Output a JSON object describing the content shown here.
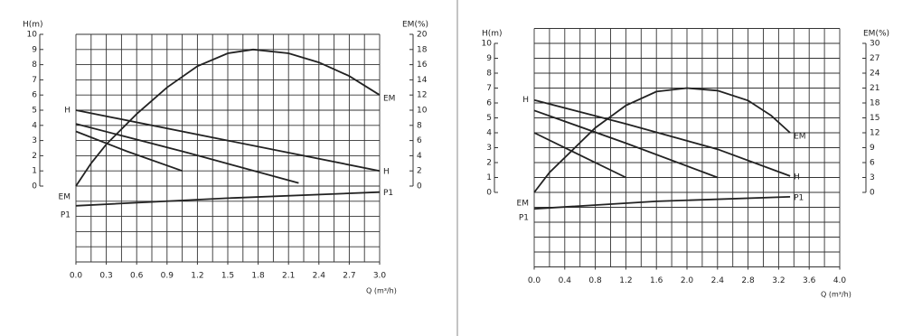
{
  "chart_data": [
    {
      "type": "line",
      "y_label": "H(m)",
      "y2_label": "EM(%)",
      "x_label": "Q (m³/h)",
      "xlim": [
        0,
        3
      ],
      "ylim": [
        -5,
        10
      ],
      "y2lim": [
        -10,
        20
      ],
      "grid": true,
      "xticks": [
        {
          "value": 0,
          "label": "0.0"
        },
        0.3,
        0.6,
        0.9,
        1.2,
        1.5,
        1.8,
        2.1,
        2.4,
        2.7,
        {
          "value": 3,
          "label": "3.0"
        }
      ],
      "yticks": [
        0,
        1,
        2,
        3,
        4,
        5,
        6,
        7,
        8,
        9,
        10
      ],
      "y2ticks": [
        0,
        2,
        4,
        6,
        8,
        10,
        12,
        14,
        16,
        18,
        20
      ],
      "series": [
        {
          "name": "EM",
          "axis": "y2",
          "color": "#222222",
          "x": [
            0,
            0.15,
            0.3,
            0.6,
            0.9,
            1.2,
            1.5,
            1.75,
            2.1,
            2.4,
            2.7,
            3.0
          ],
          "values": [
            0,
            3,
            5.5,
            9.5,
            13,
            15.8,
            17.5,
            18,
            17.5,
            16.3,
            14.5,
            12
          ]
        },
        {
          "name": "H",
          "color": "#222222",
          "x": [
            0,
            1.5,
            3.0
          ],
          "values": [
            5,
            3,
            1
          ]
        },
        {
          "color": "#222222",
          "x": [
            0,
            1.1,
            2.2
          ],
          "values": [
            4.1,
            2.2,
            0.2
          ]
        },
        {
          "color": "#222222",
          "x": [
            0,
            0.5,
            1.05
          ],
          "values": [
            3.6,
            2.3,
            1.0
          ]
        },
        {
          "name": "P1",
          "color": "#222222",
          "x": [
            0,
            1.5,
            3.0
          ],
          "values": [
            -1.3,
            -0.8,
            -0.4
          ]
        }
      ]
    },
    {
      "type": "line",
      "y_label": "H(m)",
      "y2_label": "EM(%)",
      "x_label": "Q (m³/h)",
      "xlim": [
        0,
        4
      ],
      "ylim": [
        -5,
        11
      ],
      "y2lim": [
        -15,
        33
      ],
      "grid": true,
      "xticks": [
        {
          "value": 0,
          "label": "0.0"
        },
        0.4,
        0.8,
        1.2,
        1.6,
        {
          "value": 2,
          "label": "2.0"
        },
        2.4,
        2.8,
        3.2,
        3.6,
        {
          "value": 4,
          "label": "4.0"
        }
      ],
      "yticks": [
        0,
        1,
        2,
        3,
        4,
        5,
        6,
        7,
        8,
        9,
        10
      ],
      "y2ticks": [
        0,
        3,
        6,
        9,
        12,
        15,
        18,
        21,
        24,
        27,
        30
      ],
      "series": [
        {
          "name": "EM",
          "axis": "y2",
          "color": "#222222",
          "x": [
            0,
            0.2,
            0.4,
            0.8,
            1.2,
            1.6,
            2.0,
            2.4,
            2.8,
            3.1,
            3.35
          ],
          "values": [
            0,
            4,
            7,
            13,
            17.5,
            20.3,
            21,
            20.5,
            18.5,
            15.5,
            12
          ]
        },
        {
          "name": "H",
          "color": "#222222",
          "x": [
            0,
            1.2,
            2.4,
            3.35
          ],
          "values": [
            6.2,
            4.6,
            2.9,
            1.1
          ]
        },
        {
          "color": "#222222",
          "x": [
            0,
            1.2,
            2.4
          ],
          "values": [
            5.5,
            3.3,
            1.0
          ]
        },
        {
          "color": "#222222",
          "x": [
            0,
            0.6,
            1.2
          ],
          "values": [
            4.0,
            2.5,
            1.0
          ]
        },
        {
          "name": "P1",
          "color": "#222222",
          "x": [
            0,
            1.6,
            3.35
          ],
          "values": [
            -1.1,
            -0.6,
            -0.3
          ]
        }
      ]
    }
  ]
}
